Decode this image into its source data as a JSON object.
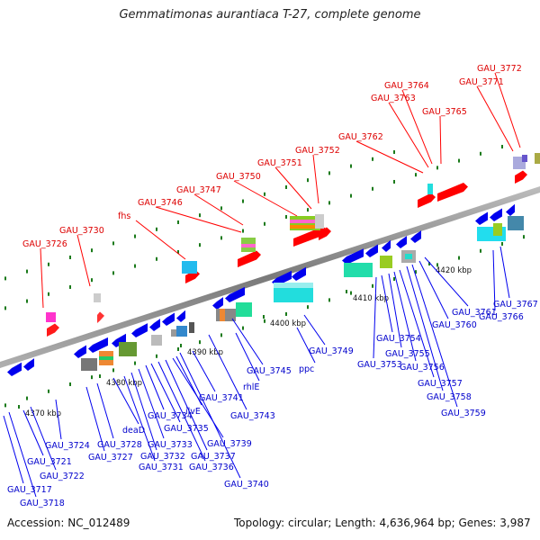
{
  "title": "Gemmatimonas aurantiaca T-27, complete genome",
  "footer": {
    "accession": "Accession: NC_012489",
    "summary": "Topology: circular; Length: 4,636,964 bp; Genes: 3,987"
  },
  "colors": {
    "backbone": "#8c8c8c",
    "forward_gene": "#ff0000",
    "reverse_gene": "#0000ee",
    "forward_label": "#dd0000",
    "reverse_label": "#0000cc",
    "tick": "#1a7a1a"
  },
  "scale_ticks": [
    "4370 kbp",
    "4380 kbp",
    "4390 kbp",
    "4400 kbp",
    "4410 kbp",
    "4420 kbp"
  ],
  "forward_labels": [
    "GAU_3726",
    "GAU_3730",
    "fhs",
    "GAU_3746",
    "GAU_3747",
    "GAU_3750",
    "GAU_3751",
    "GAU_3752",
    "GAU_3762",
    "GAU_3763",
    "GAU_3764",
    "GAU_3765",
    "GAU_3771",
    "GAU_3772"
  ],
  "reverse_labels": [
    "GAU_3717",
    "GAU_3718",
    "GAU_3721",
    "GAU_3722",
    "GAU_3724",
    "GAU_3727",
    "GAU_3728",
    "deaD",
    "GAU_3731",
    "GAU_3732",
    "GAU_3733",
    "GAU_3734",
    "GAU_3735",
    "GAU_3736",
    "GAU_3737",
    "GAU_3739",
    "ilvE",
    "GAU_3740",
    "GAU_3741",
    "GAU_3743",
    "rhlE",
    "GAU_3745",
    "ppc",
    "GAU_3749",
    "GAU_3753",
    "GAU_3754",
    "GAU_3755",
    "GAU_3756",
    "GAU_3757",
    "GAU_3758",
    "GAU_3759",
    "GAU_3760",
    "GAU_3761",
    "GAU_3766",
    "GAU_3767"
  ]
}
